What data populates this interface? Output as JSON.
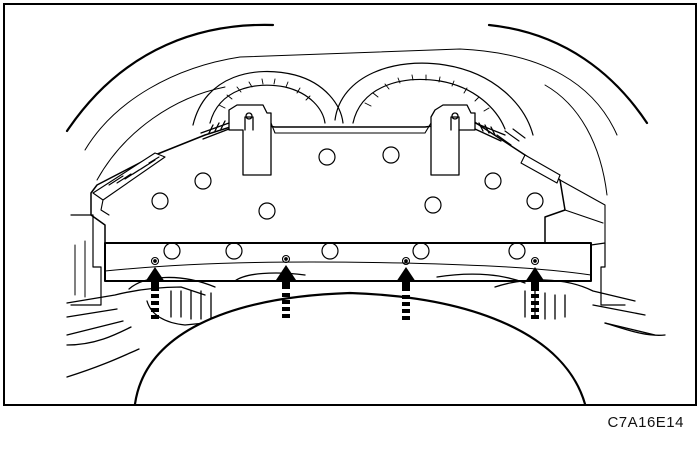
{
  "figure": {
    "code": "C7A16E14",
    "line_color": "#000000",
    "background": "#ffffff",
    "bolt_arrow_count": 4
  }
}
